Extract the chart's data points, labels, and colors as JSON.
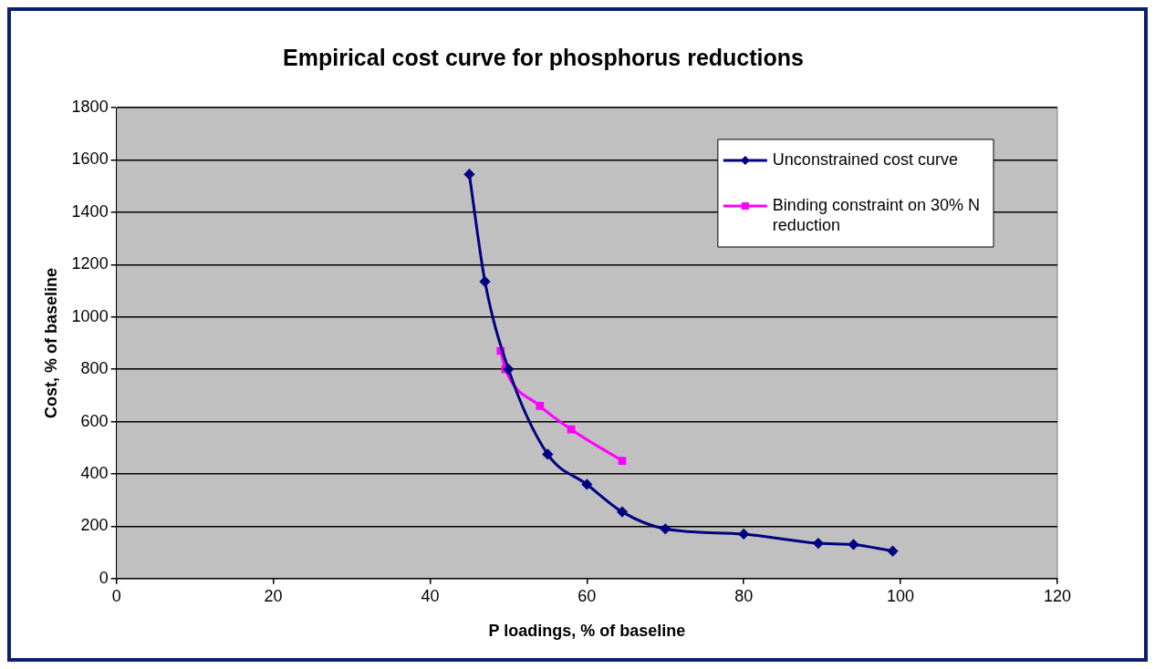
{
  "chart_data": {
    "type": "line",
    "title": "Empirical cost curve for phosphorus reductions",
    "xlabel": "P loadings, % of baseline",
    "ylabel": "Cost, % of baseline",
    "xlim": [
      0,
      120
    ],
    "xticks": [
      0,
      20,
      40,
      60,
      80,
      100,
      120
    ],
    "ylim": [
      0,
      1800
    ],
    "yticks": [
      0,
      200,
      400,
      600,
      800,
      1000,
      1200,
      1400,
      1600,
      1800
    ],
    "grid": "y",
    "legend": "top right",
    "series": [
      {
        "name": "Unconstrained cost curve",
        "color": "#000080",
        "marker": "diamond",
        "x": [
          45,
          47,
          50,
          55,
          60,
          64.5,
          70,
          80,
          89.5,
          94,
          99
        ],
        "values": [
          1545,
          1135,
          800,
          475,
          360,
          255,
          190,
          170,
          135,
          130,
          105
        ]
      },
      {
        "name": "Binding constraint on 30% N reduction",
        "color": "#ff00ff",
        "marker": "square",
        "x": [
          49,
          49.6,
          54,
          58,
          64.5
        ],
        "values": [
          870,
          800,
          660,
          570,
          450
        ]
      }
    ]
  }
}
